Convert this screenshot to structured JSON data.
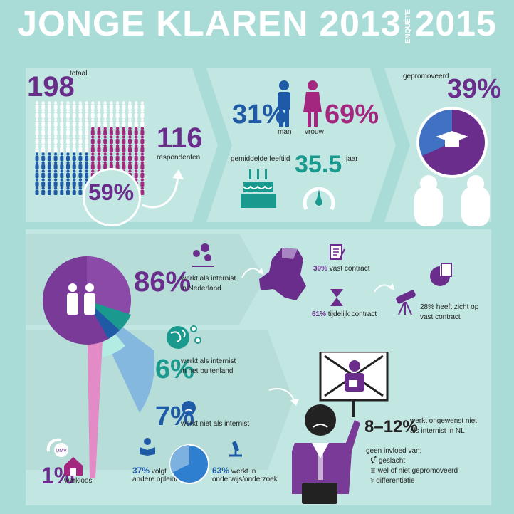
{
  "title": {
    "left": "JONGE KLAREN 2013",
    "enquete": "ENQUÊTE",
    "right": "2015"
  },
  "respondents": {
    "total_value": "198",
    "total_label": "totaal",
    "resp_value": "116",
    "resp_label": "respondenten",
    "pct": "59%"
  },
  "gender": {
    "man_pct": "31%",
    "man_label": "man",
    "vrouw_pct": "69%",
    "vrouw_label": "vrouw",
    "age_label": "gemiddelde leeftijd",
    "age_value": "35.5",
    "age_unit": "jaar"
  },
  "promoted": {
    "label": "gepromoveerd",
    "pct": "39%"
  },
  "internist_nl": {
    "pct": "86%",
    "label1": "werkt als internist",
    "label2": "in Nederland",
    "vast_pct": "39%",
    "vast_label": "vast contract",
    "tijdelijk_pct": "61%",
    "tijdelijk_label": "tijdelijk contract",
    "zicht1": "28% heeft zicht op",
    "zicht2": "vast contract"
  },
  "internist_abroad": {
    "pct": "6%",
    "label1": "werkt als internist",
    "label2": "in het buitenland"
  },
  "not_internist": {
    "pct": "7%",
    "label": "werkt niet als internist",
    "opl_pct": "37%",
    "opl_label1": "volgt",
    "opl_label2": "andere opleiding",
    "ond_pct": "63%",
    "ond_label1": "werkt in",
    "ond_label2": "onderwijs/onderzoek"
  },
  "unemployed": {
    "pct": "1%",
    "label": "werkloos",
    "logo": "UMV"
  },
  "unwanted": {
    "range": "8–12%",
    "label1": "werkt ongewenst niet",
    "label2": "als internist in NL",
    "no_influence": "geen invloed van:",
    "items": [
      "geslacht",
      "wel of niet gepromoveerd",
      "differentiatie"
    ]
  },
  "colors": {
    "purple": "#6a2d8c",
    "blue": "#1f5aa6",
    "magenta": "#a4277f",
    "teal": "#1a9a8e"
  }
}
